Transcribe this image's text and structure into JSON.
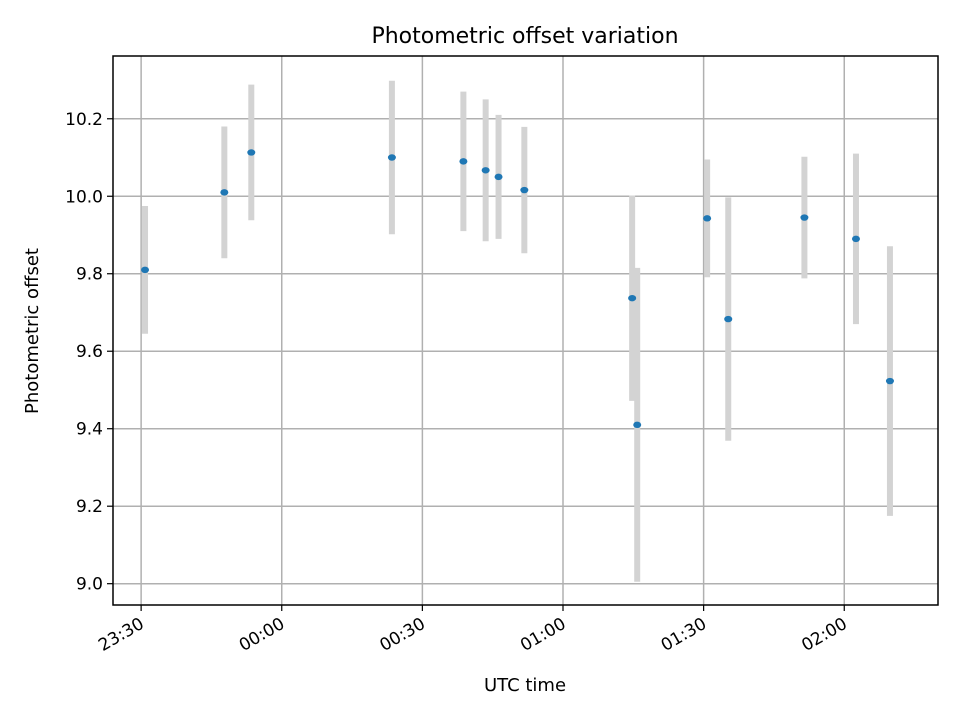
{
  "chart_data": {
    "type": "scatter",
    "title": "Photometric offset variation",
    "xlabel": "UTC time",
    "ylabel": "Photometric offset",
    "x_axis": {
      "kind": "time",
      "range": [
        "23:24",
        "02:20"
      ],
      "ticks": [
        "23:30",
        "00:00",
        "00:30",
        "01:00",
        "01:30",
        "02:00"
      ]
    },
    "y_axis": {
      "range": [
        8.945,
        10.362
      ],
      "ticks": [
        9.0,
        9.2,
        9.4,
        9.6,
        9.8,
        10.0,
        10.2
      ],
      "tick_labels": [
        "9.0",
        "9.2",
        "9.4",
        "9.6",
        "9.8",
        "10.0",
        "10.2"
      ]
    },
    "grid": true,
    "series": [
      {
        "marker_color": "#1f77b4",
        "errorbar_color": "#d3d3d3",
        "points": [
          {
            "t": "23:30:50",
            "y": 9.81,
            "yerr": 0.165
          },
          {
            "t": "23:47:45",
            "y": 10.01,
            "yerr": 0.17
          },
          {
            "t": "23:53:30",
            "y": 10.113,
            "yerr": 0.175
          },
          {
            "t": "00:23:30",
            "y": 10.1,
            "yerr": 0.198
          },
          {
            "t": "00:38:45",
            "y": 10.09,
            "yerr": 0.18
          },
          {
            "t": "00:43:30",
            "y": 10.067,
            "yerr": 0.183
          },
          {
            "t": "00:46:15",
            "y": 10.05,
            "yerr": 0.16
          },
          {
            "t": "00:51:45",
            "y": 10.016,
            "yerr": 0.163
          },
          {
            "t": "01:14:45",
            "y": 9.737,
            "yerr": 0.265
          },
          {
            "t": "01:15:50",
            "y": 9.41,
            "yerr": 0.405
          },
          {
            "t": "01:30:45",
            "y": 9.943,
            "yerr": 0.152
          },
          {
            "t": "01:35:15",
            "y": 9.683,
            "yerr": 0.314
          },
          {
            "t": "01:51:30",
            "y": 9.945,
            "yerr": 0.157
          },
          {
            "t": "02:02:30",
            "y": 9.89,
            "yerr": 0.22
          },
          {
            "t": "02:09:45",
            "y": 9.523,
            "yerr": 0.348
          }
        ]
      }
    ]
  }
}
